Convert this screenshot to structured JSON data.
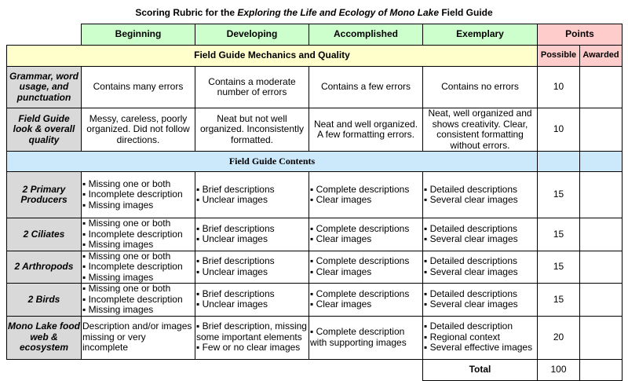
{
  "title": {
    "prefix": "Scoring Rubric for the ",
    "italic": "Exploring the Life and Ecology of Mono Lake",
    "suffix": " Field Guide"
  },
  "levels": [
    "Beginning",
    "Developing",
    "Accomplished",
    "Exemplary"
  ],
  "points_header": "Points",
  "possible_label": "Possible",
  "awarded_label": "Awarded",
  "sections": {
    "mechanics": "Field Guide Mechanics and Quality",
    "contents": "Field Guide Contents"
  },
  "colors": {
    "levels": "#ccffcc",
    "points": "#ffcccc",
    "mechanics": "#ffffcc",
    "contents": "#cce9fc",
    "criteria": "#d9d9d9"
  },
  "mechanics_rows": [
    {
      "criterion": "Grammar, word usage, and punctuation",
      "cells": [
        "Contains many errors",
        "Contains a moderate number of errors",
        "Contains a few errors",
        "Contains no errors"
      ],
      "possible": "10",
      "awarded": ""
    },
    {
      "criterion": "Field Guide look & overall quality",
      "cells": [
        "Messy, careless, poorly organized. Did not follow directions.",
        "Neat but not well organized. Inconsistently formatted.",
        "Neat and well organized. A few formatting errors.",
        "Neat, well organized and shows creativity. Clear, consistent formatting without errors."
      ],
      "possible": "10",
      "awarded": ""
    }
  ],
  "content_rows": [
    {
      "criterion": "2 Primary Producers",
      "cells": [
        [
          "Missing one or both",
          "Incomplete description",
          "Missing images"
        ],
        [
          "Brief descriptions",
          "Unclear images"
        ],
        [
          "Complete descriptions",
          "Clear images"
        ],
        [
          "Detailed descriptions",
          "Several clear images"
        ]
      ],
      "possible": "15",
      "awarded": ""
    },
    {
      "criterion": "2 Ciliates",
      "cells": [
        [
          "Missing one or both",
          "Incomplete description",
          "Missing images"
        ],
        [
          "Brief descriptions",
          "Unclear images"
        ],
        [
          "Complete descriptions",
          "Clear images"
        ],
        [
          "Detailed descriptions",
          "Several clear images"
        ]
      ],
      "possible": "15",
      "awarded": ""
    },
    {
      "criterion": "2 Arthropods",
      "cells": [
        [
          "Missing one or both",
          "Incomplete description",
          "Missing images"
        ],
        [
          "Brief descriptions",
          "Unclear images"
        ],
        [
          "Complete descriptions",
          "Clear images"
        ],
        [
          "Detailed descriptions",
          "Several clear images"
        ]
      ],
      "possible": "15",
      "awarded": ""
    },
    {
      "criterion": "2 Birds",
      "cells": [
        [
          "Missing one or both",
          "Incomplete description",
          "Missing images"
        ],
        [
          "Brief descriptions",
          "Unclear images"
        ],
        [
          "Complete descriptions",
          "Clear images"
        ],
        [
          "Detailed descriptions",
          "Several clear images"
        ]
      ],
      "possible": "15",
      "awarded": ""
    },
    {
      "criterion": "Mono Lake food web & ecosystem",
      "cells": [
        [
          "Description and/or images missing or very incomplete"
        ],
        [
          "Brief description, missing some important elements",
          "Few or no clear images"
        ],
        [
          "Complete description with supporting images"
        ],
        [
          "Detailed description",
          "Regional context",
          "Several effective images"
        ]
      ],
      "bullets": [
        false,
        true,
        true,
        true
      ],
      "possible": "20",
      "awarded": ""
    }
  ],
  "total": {
    "label": "Total",
    "possible": "100",
    "awarded": ""
  }
}
